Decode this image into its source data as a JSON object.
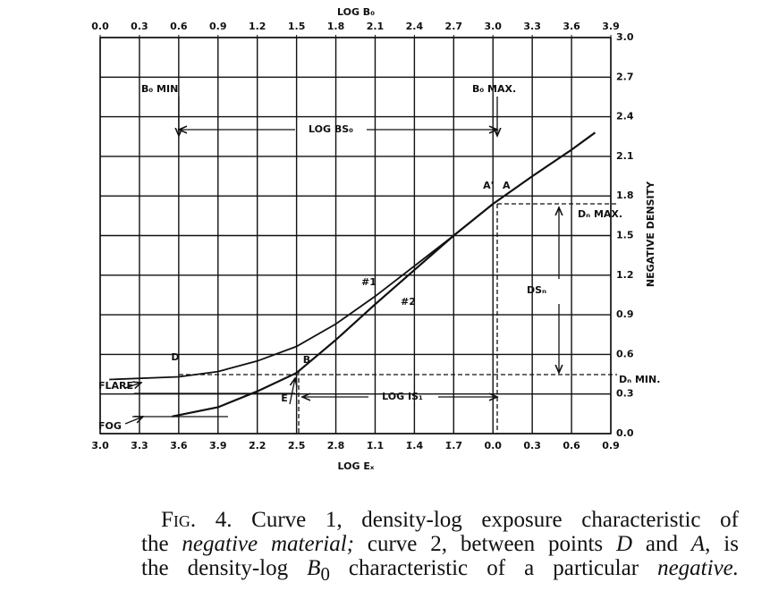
{
  "chart_data": {
    "type": "line",
    "x_label": "LOG Eₓ",
    "x2_label": "LOG B₀",
    "y_label": "NEGATIVE DENSITY",
    "xlim": [
      -3.0,
      0.9
    ],
    "xticks": [
      {
        "value": -3.0,
        "label": "3̄.0"
      },
      {
        "value": -2.7,
        "label": "3̄.3"
      },
      {
        "value": -2.4,
        "label": "3̄.6"
      },
      {
        "value": -2.1,
        "label": "3̄.9"
      },
      {
        "value": -1.8,
        "label": "2̄.2"
      },
      {
        "value": -1.5,
        "label": "2̄.5"
      },
      {
        "value": -1.2,
        "label": "2̄.8"
      },
      {
        "value": -0.9,
        "label": "1̄.1"
      },
      {
        "value": -0.6,
        "label": "1̄.4"
      },
      {
        "value": -0.3,
        "label": "1̄.7"
      },
      {
        "value": 0,
        "label": "0.0"
      },
      0.3,
      0.6,
      0.9
    ],
    "x2lim": [
      0,
      3.9
    ],
    "x2ticks": [
      {
        "value": 0,
        "label": "0.0"
      },
      0.3,
      0.6,
      0.9,
      1.2,
      1.5,
      1.8,
      2.1,
      2.4,
      2.7,
      {
        "value": 3,
        "label": "3.0"
      },
      3.3,
      3.6,
      3.9
    ],
    "ylim": [
      0,
      3.0
    ],
    "yticks": [
      {
        "value": 0,
        "label": "0.0"
      },
      0.3,
      0.6,
      0.9,
      1.2,
      1.5,
      1.8,
      2.1,
      2.4,
      2.7,
      {
        "value": 3,
        "label": "3.0"
      }
    ],
    "y_axis_side": "right",
    "grid": true,
    "series": [
      {
        "name": "#1",
        "color": "#111111",
        "x": [
          -2.45,
          -2.1,
          -1.8,
          -1.5,
          -1.2,
          -0.9,
          -0.6,
          -0.3,
          0.0,
          0.3,
          0.6,
          0.78
        ],
        "values": [
          0.13,
          0.2,
          0.32,
          0.46,
          0.71,
          0.98,
          1.24,
          1.5,
          1.74,
          1.95,
          2.15,
          2.28
        ]
      },
      {
        "name": "#2",
        "color": "#111111",
        "x": [
          -2.93,
          -2.4,
          -2.1,
          -1.8,
          -1.5,
          -1.2,
          -0.9,
          -0.6,
          -0.3,
          0.0
        ],
        "values": [
          0.41,
          0.43,
          0.47,
          0.55,
          0.66,
          0.83,
          1.04,
          1.27,
          1.5,
          1.74
        ]
      }
    ],
    "annotations": [
      "B₀ MIN",
      "B₀ MAX.",
      "LOG BS₀",
      "A'",
      "A",
      "Dₙ MAX.",
      "DSₙ",
      "Dₙ MIN.",
      "D",
      "B",
      "E",
      "FLARE",
      "FOG",
      "LOG IS₁"
    ]
  },
  "caption": {
    "lines": [
      [
        "Fig. 4.",
        " Curve 1, density-log exposure characteristic of"
      ],
      [
        "the ",
        "negative material;",
        " curve 2, between points ",
        "D",
        " and ",
        "A",
        ", is"
      ],
      [
        "the density-log ",
        "B",
        "0",
        " characteristic of a particular ",
        "negative."
      ]
    ]
  }
}
